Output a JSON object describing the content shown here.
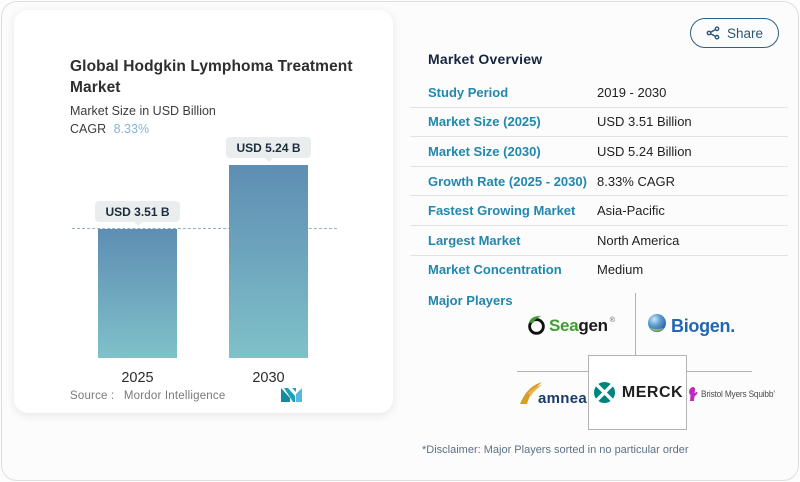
{
  "share": {
    "label": "Share"
  },
  "left_card": {
    "title": "Global Hodgkin Lymphoma Treatment Market",
    "subtitle": "Market Size in USD Billion",
    "cagr_label": "CAGR",
    "cagr_value": "8.33%",
    "source_label": "Source :",
    "source_value": "Mordor Intelligence"
  },
  "chart_data": {
    "type": "bar",
    "categories": [
      "2025",
      "2030"
    ],
    "values": [
      3.51,
      5.24
    ],
    "value_labels": [
      "USD 3.51 B",
      "USD 5.24 B"
    ],
    "title": "Global Hodgkin Lymphoma Treatment Market",
    "xlabel": "",
    "ylabel": "Market Size in USD Billion",
    "ylim": [
      0,
      5.9
    ],
    "grid": false,
    "legend": false,
    "reference_line_at": 3.51,
    "bar_gradient": [
      "#5e8eb3",
      "#7fc1c9"
    ]
  },
  "overview": {
    "heading": "Market Overview",
    "rows": [
      {
        "label": "Study Period",
        "value": "2019 - 2030"
      },
      {
        "label": "Market Size (2025)",
        "value": "USD 3.51 Billion"
      },
      {
        "label": "Market Size (2030)",
        "value": "USD 5.24 Billion"
      },
      {
        "label": "Growth Rate (2025 - 2030)",
        "value": "8.33% CAGR"
      },
      {
        "label": "Fastest Growing Market",
        "value": "Asia-Pacific"
      },
      {
        "label": "Largest Market",
        "value": "North America"
      },
      {
        "label": "Market Concentration",
        "value": "Medium"
      }
    ],
    "major_players_label": "Major Players",
    "players": {
      "seagen": {
        "part1": "Sea",
        "part2": "gen",
        "reg": "®"
      },
      "biogen": {
        "name": "Biogen."
      },
      "amneal": {
        "name": "amneal",
        "reg": "®"
      },
      "merck": {
        "name": "MERCK"
      },
      "bms": {
        "name": "Bristol Myers Squibb’"
      }
    },
    "disclaimer": "*Disclaimer: Major Players sorted in no particular order"
  },
  "icons": {
    "share": "share-nodes-icon",
    "mordor_logo": "mordor-intelligence-logo",
    "seagen_mark": "seagen-o-leaf-icon",
    "biogen_mark": "biogen-sphere-icon",
    "amneal_mark": "amneal-swoosh-icon",
    "merck_mark": "merck-diamond-icon",
    "bms_mark": "bms-hand-icon"
  },
  "colors": {
    "accent_teal": "#2287ac",
    "heading_navy": "#17263f",
    "cagr_blue": "#85b5d6",
    "bar_top": "#5e8eb3",
    "bar_bottom": "#7fc1c9",
    "seagen_green": "#3f9c35",
    "biogen_blue": "#2366b1",
    "amneal_navy": "#1b3a6b",
    "amneal_gold": "#d99b2b",
    "merck_teal": "#00857c",
    "bms_magenta": "#be2bbb"
  }
}
